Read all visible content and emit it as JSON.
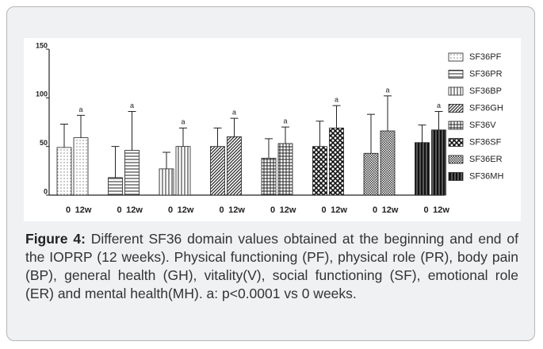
{
  "chart_data": {
    "type": "bar",
    "ylim": [
      0,
      150
    ],
    "yticks": [
      0,
      50,
      100,
      150
    ],
    "bar_labels": [
      "0",
      "12w"
    ],
    "annotation": "a",
    "series": [
      {
        "name": "SF36PF",
        "pattern": "dots",
        "values": [
          49,
          59
        ],
        "errors": [
          24,
          23
        ]
      },
      {
        "name": "SF36PR",
        "pattern": "hlines",
        "values": [
          18,
          46
        ],
        "errors": [
          32,
          40
        ]
      },
      {
        "name": "SF36BP",
        "pattern": "vlines",
        "values": [
          27,
          50
        ],
        "errors": [
          17,
          19
        ]
      },
      {
        "name": "SF36GH",
        "pattern": "diag",
        "values": [
          50,
          60
        ],
        "errors": [
          19,
          19
        ]
      },
      {
        "name": "SF36V",
        "pattern": "grid",
        "values": [
          38,
          53
        ],
        "errors": [
          20,
          17
        ]
      },
      {
        "name": "SF36SF",
        "pattern": "cross",
        "values": [
          50,
          69
        ],
        "errors": [
          26,
          23
        ]
      },
      {
        "name": "SF36ER",
        "pattern": "checker",
        "values": [
          43,
          66
        ],
        "errors": [
          40,
          36
        ]
      },
      {
        "name": "SF36MH",
        "pattern": "solid",
        "values": [
          54,
          67
        ],
        "errors": [
          18,
          19
        ]
      }
    ]
  },
  "caption": {
    "label": "Figure 4:",
    "text": " Different SF36 domain values obtained at the beginning and end of the IOPRP (12 weeks). Physical functioning (PF), physical role (PR), body pain (BP), general health (GH), vitality(V), social functioning (SF), emotional role (ER) and mental health(MH). a: p<0.0001 vs 0 weeks."
  }
}
